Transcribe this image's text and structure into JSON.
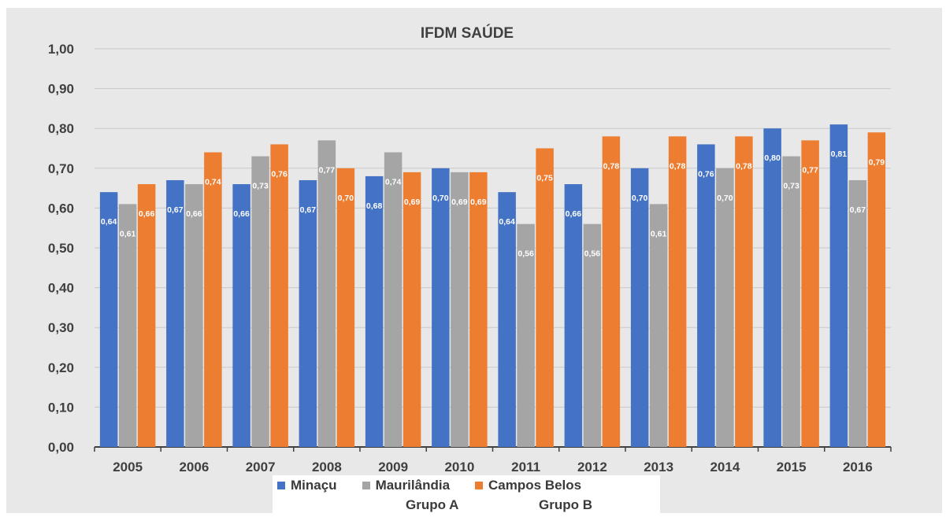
{
  "chart_data": {
    "type": "bar",
    "title": "IFDM SAÚDE",
    "categories": [
      "2005",
      "2006",
      "2007",
      "2008",
      "2009",
      "2010",
      "2011",
      "2012",
      "2013",
      "2014",
      "2015",
      "2016"
    ],
    "series": [
      {
        "name": "Minaçu",
        "color": "#4472c4",
        "values": [
          0.64,
          0.67,
          0.66,
          0.67,
          0.68,
          0.7,
          0.64,
          0.66,
          0.7,
          0.76,
          0.8,
          0.81
        ],
        "labels": [
          "0,64",
          "0,67",
          "0,66",
          "0,67",
          "0,68",
          "0,70",
          "0,64",
          "0,66",
          "0,70",
          "0,76",
          "0,80",
          "0,81"
        ]
      },
      {
        "name": "Maurilândia",
        "color": "#a5a5a5",
        "values": [
          0.61,
          0.66,
          0.73,
          0.77,
          0.74,
          0.69,
          0.56,
          0.56,
          0.61,
          0.7,
          0.73,
          0.67
        ],
        "labels": [
          "0,61",
          "0,66",
          "0,73",
          "0,77",
          "0,74",
          "0,69",
          "0,56",
          "0,56",
          "0,61",
          "0,70",
          "0,73",
          "0,67"
        ]
      },
      {
        "name": "Campos Belos",
        "color": "#ed7d31",
        "values": [
          0.66,
          0.74,
          0.76,
          0.7,
          0.69,
          0.69,
          0.75,
          0.78,
          0.78,
          0.78,
          0.77,
          0.79
        ],
        "labels": [
          "0,66",
          "0,74",
          "0,76",
          "0,70",
          "0,69",
          "0,69",
          "0,75",
          "0,78",
          "0,78",
          "0,78",
          "0,77",
          "0,79"
        ]
      }
    ],
    "ylim": [
      0,
      1
    ],
    "yticks": [
      "0,00",
      "0,10",
      "0,20",
      "0,30",
      "0,40",
      "0,50",
      "0,60",
      "0,70",
      "0,80",
      "0,90",
      "1,00"
    ],
    "grid": true,
    "legend_position": "bottom",
    "legend_groups": [
      "Grupo A",
      "Grupo B"
    ]
  }
}
